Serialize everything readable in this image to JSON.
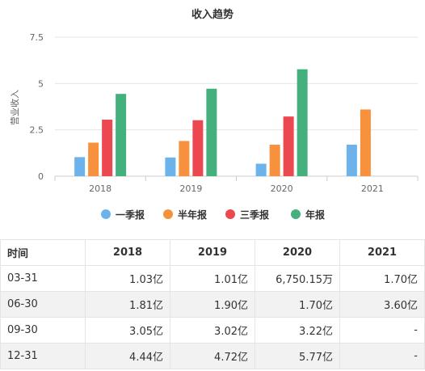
{
  "chart_data": {
    "type": "bar",
    "title": "收入趋势",
    "ylabel": "营业收入",
    "categories": [
      "2018",
      "2019",
      "2020",
      "2021"
    ],
    "yticks": [
      "0",
      "2.5",
      "5",
      "7.5"
    ],
    "ylim": [
      0,
      7.5
    ],
    "legend_position": "bottom",
    "series": [
      {
        "name": "一季报",
        "color": "#6cb3ec",
        "values": [
          1.03,
          1.01,
          0.675015,
          1.7
        ]
      },
      {
        "name": "半年报",
        "color": "#f7913d",
        "values": [
          1.81,
          1.9,
          1.7,
          3.6
        ]
      },
      {
        "name": "三季报",
        "color": "#ec4850",
        "values": [
          3.05,
          3.02,
          3.22,
          null
        ]
      },
      {
        "name": "年报",
        "color": "#44b07e",
        "values": [
          4.44,
          4.72,
          5.77,
          null
        ]
      }
    ]
  },
  "table": {
    "headers": [
      "时间",
      "2018",
      "2019",
      "2020",
      "2021"
    ],
    "rows": [
      {
        "label": "03-31",
        "cells": [
          "1.03亿",
          "1.01亿",
          "6,750.15万",
          "1.70亿"
        ]
      },
      {
        "label": "06-30",
        "cells": [
          "1.81亿",
          "1.90亿",
          "1.70亿",
          "3.60亿"
        ]
      },
      {
        "label": "09-30",
        "cells": [
          "3.05亿",
          "3.02亿",
          "3.22亿",
          "-"
        ]
      },
      {
        "label": "12-31",
        "cells": [
          "4.44亿",
          "4.72亿",
          "5.77亿",
          "-"
        ]
      }
    ]
  }
}
